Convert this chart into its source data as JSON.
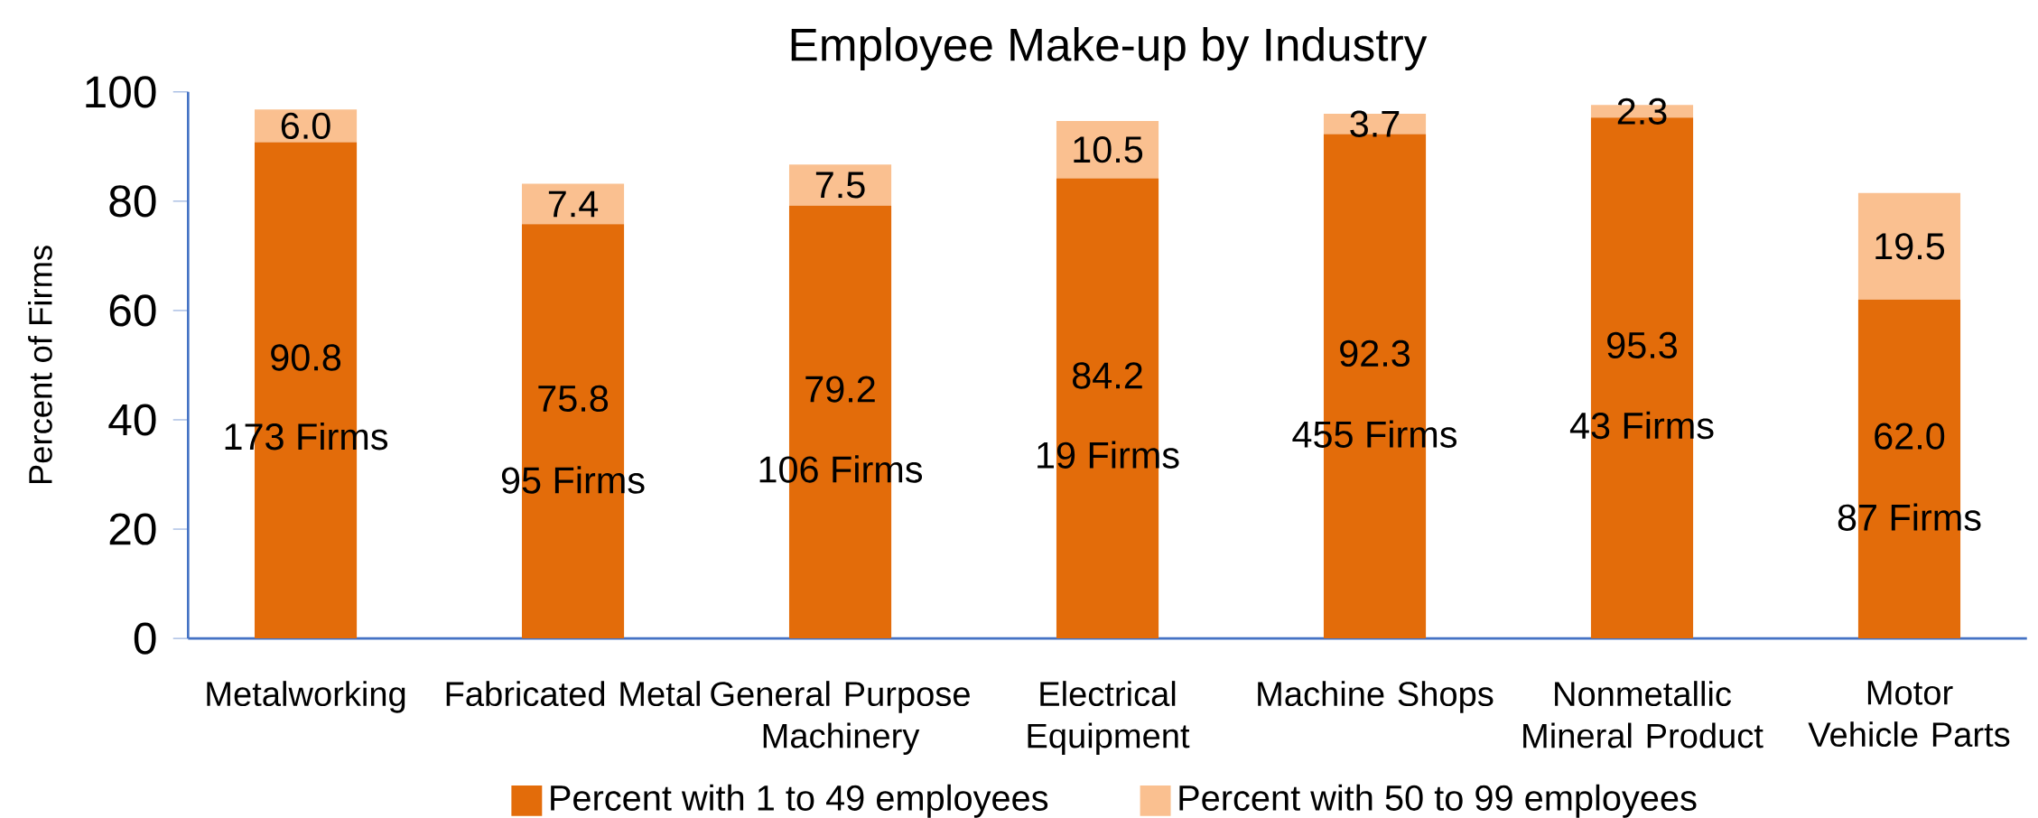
{
  "chart_data": {
    "type": "bar",
    "stacked": true,
    "title": "Employee Make-up by Industry",
    "ylabel": "Percent of Firms",
    "categories": [
      "Metalworking",
      "Fabricated Metal",
      "General Purpose Machinery",
      "Electrical Equipment",
      "Machine Shops",
      "Nonmetallic Mineral Product",
      "Motor Vehicle Parts"
    ],
    "series": [
      {
        "name": "Percent with 1 to 49 employees",
        "color": "#e36c0a",
        "values": [
          90.8,
          75.8,
          79.2,
          84.2,
          92.3,
          95.3,
          62.0
        ],
        "value_labels": [
          "90.8",
          "75.8",
          "79.2",
          "84.2",
          "92.3",
          "95.3",
          "62.0"
        ]
      },
      {
        "name": "Percent with 50 to 99 employees",
        "color": "#fac090",
        "values": [
          6.0,
          7.4,
          7.5,
          10.5,
          3.7,
          2.3,
          19.5
        ],
        "value_labels": [
          "6.0",
          "7.4",
          "7.5",
          "10.5",
          "3.7",
          "2.3",
          "19.5"
        ]
      }
    ],
    "ylim": [
      0,
      100
    ],
    "yticks": [
      0,
      20,
      40,
      60,
      80,
      100
    ],
    "legend": "bottom",
    "grid": false,
    "annotations": [
      "173 Firms",
      "95 Firms",
      "106 Firms",
      "19 Firms",
      "455 Firms",
      "43 Firms",
      "87 Firms"
    ]
  }
}
